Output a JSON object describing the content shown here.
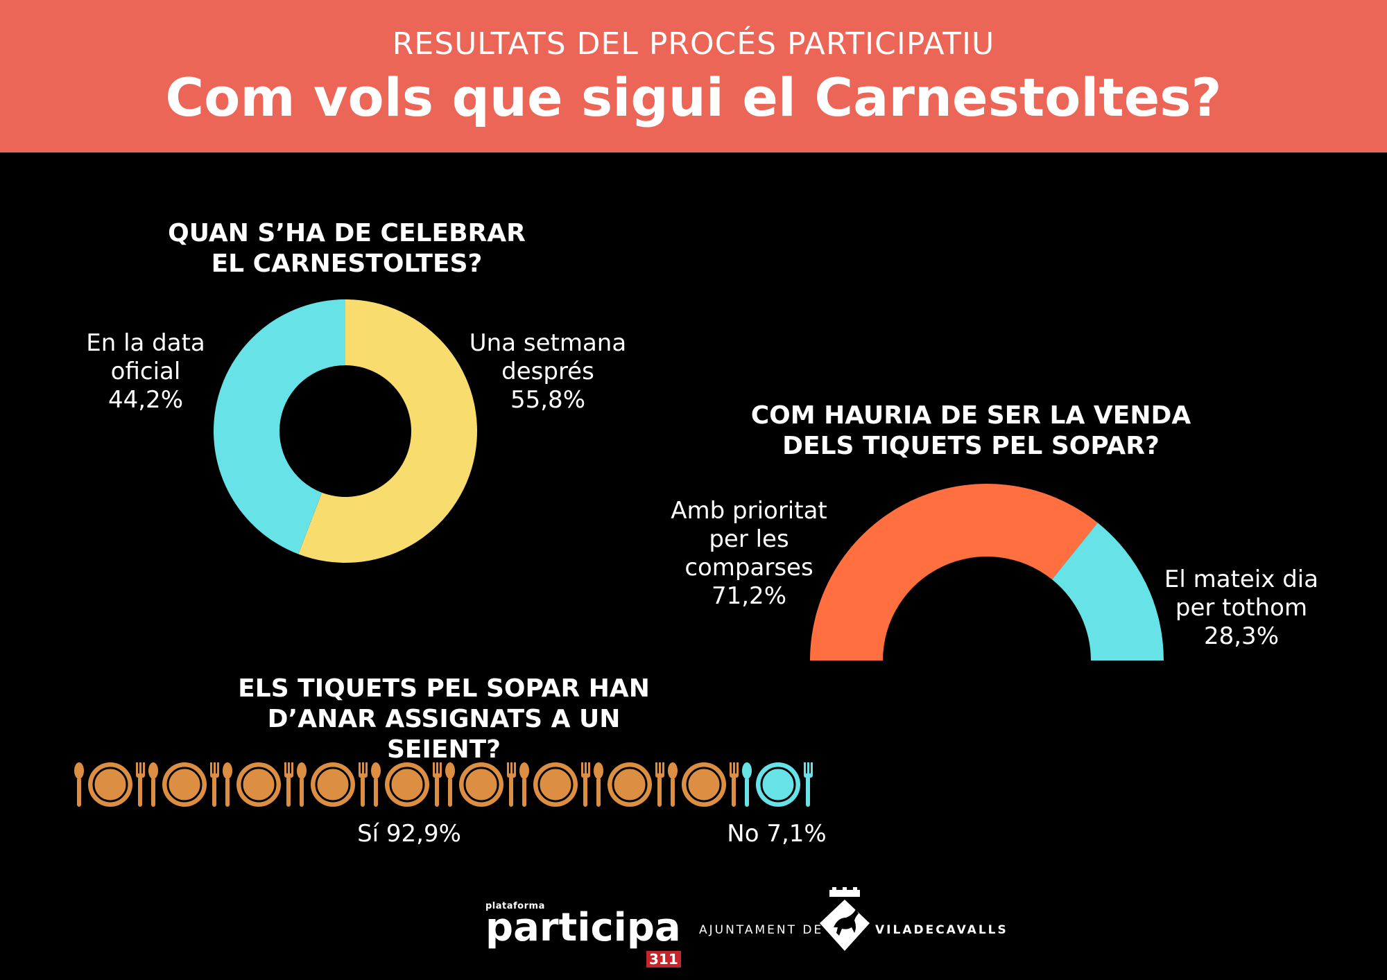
{
  "header": {
    "supertitle": "RESULTATS DEL PROCÉS PARTICIPATIU",
    "title": "Com vols que sigui el Carnestoltes?"
  },
  "chart_data": [
    {
      "type": "pie",
      "variant": "donut",
      "title": "QUAN S’HA DE CELEBRAR EL CARNESTOLTES?",
      "slices": [
        {
          "label": "Una setmana després",
          "value": 55.8,
          "display": "55,8%",
          "color": "#F9DC6E"
        },
        {
          "label": "En la data oficial",
          "value": 44.2,
          "display": "44,2%",
          "color": "#67E3E7"
        }
      ]
    },
    {
      "type": "pie",
      "variant": "half-donut",
      "title": "COM HAURIA DE SER LA VENDA DELS TIQUETS PEL SOPAR?",
      "slices": [
        {
          "label": "Amb prioritat per les comparses",
          "value": 71.2,
          "display": "71,2%",
          "color": "#FF6F40"
        },
        {
          "label": "El mateix dia per tothom",
          "value": 28.3,
          "display": "28,3%",
          "color": "#67E3E7"
        }
      ]
    },
    {
      "type": "bar",
      "variant": "pictogram",
      "title": "ELS TIQUETS PEL SOPAR HAN D’ANAR ASSIGNATS A UN SEIENT?",
      "categories": [
        "Sí",
        "No"
      ],
      "values": [
        92.9,
        7.1
      ],
      "series": [
        {
          "name": "Sí",
          "display": "Sí 92,9%",
          "value": 92.9,
          "color": "#DC8F42"
        },
        {
          "name": "No",
          "display": "No 7,1%",
          "value": 7.1,
          "color": "#67E3E7"
        }
      ]
    }
  ],
  "footer": {
    "participa_small": "plataforma",
    "participa_big": "participa",
    "participa_num": "311",
    "ajuntament_prefix": "AJUNTAMENT DE",
    "ajuntament_name": "VILADECAVALLS"
  }
}
